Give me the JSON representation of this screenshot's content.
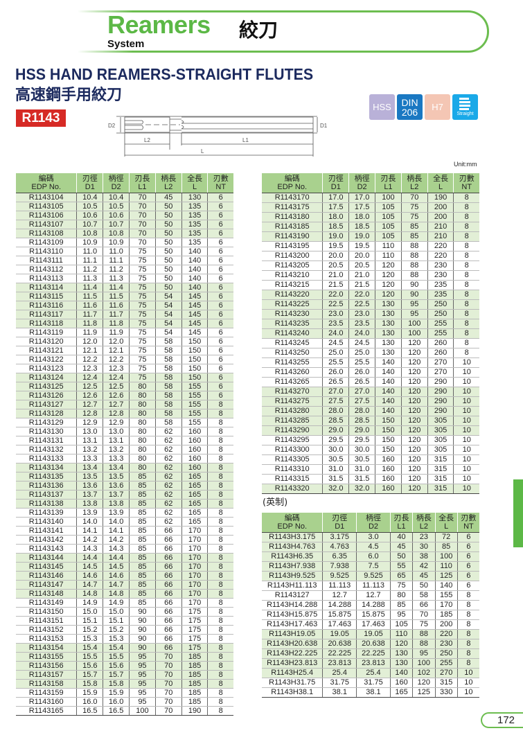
{
  "header": {
    "brand": "Reamers",
    "system": "System",
    "brand_cn": "絞刀"
  },
  "title": "HSS HAND REAMERS-STRAIGHT FLUTES",
  "title_cn": "高速鋼手用絞刀",
  "code": "R1143",
  "badges": [
    {
      "label": "HSS",
      "color": "#b9b1d8"
    },
    {
      "label": "DIN",
      "label2": "206",
      "color": "#1a78c2"
    },
    {
      "label": "H7",
      "color": "#f4c6b4"
    },
    {
      "label": "Straight",
      "color": "#1aa9e8"
    }
  ],
  "diagram": {
    "d2": "D2",
    "d1": "D1",
    "l2": "L2",
    "l1": "L1",
    "l": "L"
  },
  "unit": "Unit:mm",
  "columns": [
    [
      "編碼",
      "EDP No."
    ],
    [
      "刃徑",
      "D1"
    ],
    [
      "柄徑",
      "D2"
    ],
    [
      "刃長",
      "L1"
    ],
    [
      "柄長",
      "L2"
    ],
    [
      "全長",
      "L"
    ],
    [
      "刃數",
      "NT"
    ]
  ],
  "metric_left": [
    [
      "R1143104",
      "10.4",
      "10.4",
      "70",
      "45",
      "130",
      "6"
    ],
    [
      "R1143105",
      "10.5",
      "10.5",
      "70",
      "50",
      "135",
      "6"
    ],
    [
      "R1143106",
      "10.6",
      "10.6",
      "70",
      "50",
      "135",
      "6"
    ],
    [
      "R1143107",
      "10.7",
      "10.7",
      "70",
      "50",
      "135",
      "6"
    ],
    [
      "R1143108",
      "10.8",
      "10.8",
      "70",
      "50",
      "135",
      "6"
    ],
    [
      "R1143109",
      "10.9",
      "10.9",
      "70",
      "50",
      "135",
      "6"
    ],
    [
      "R1143110",
      "11.0",
      "11.0",
      "75",
      "50",
      "140",
      "6"
    ],
    [
      "R1143111",
      "11.1",
      "11.1",
      "75",
      "50",
      "140",
      "6"
    ],
    [
      "R1143112",
      "11.2",
      "11.2",
      "75",
      "50",
      "140",
      "6"
    ],
    [
      "R1143113",
      "11.3",
      "11.3",
      "75",
      "50",
      "140",
      "6"
    ],
    [
      "R1143114",
      "11.4",
      "11.4",
      "75",
      "50",
      "140",
      "6"
    ],
    [
      "R1143115",
      "11.5",
      "11.5",
      "75",
      "54",
      "145",
      "6"
    ],
    [
      "R1143116",
      "11.6",
      "11.6",
      "75",
      "54",
      "145",
      "6"
    ],
    [
      "R1143117",
      "11.7",
      "11.7",
      "75",
      "54",
      "145",
      "6"
    ],
    [
      "R1143118",
      "11.8",
      "11.8",
      "75",
      "54",
      "145",
      "6"
    ],
    [
      "R1143119",
      "11.9",
      "11.9",
      "75",
      "54",
      "145",
      "6"
    ],
    [
      "R1143120",
      "12.0",
      "12.0",
      "75",
      "58",
      "150",
      "6"
    ],
    [
      "R1143121",
      "12.1",
      "12.1",
      "75",
      "58",
      "150",
      "6"
    ],
    [
      "R1143122",
      "12.2",
      "12.2",
      "75",
      "58",
      "150",
      "6"
    ],
    [
      "R1143123",
      "12.3",
      "12.3",
      "75",
      "58",
      "150",
      "6"
    ],
    [
      "R1143124",
      "12.4",
      "12.4",
      "75",
      "58",
      "150",
      "6"
    ],
    [
      "R1143125",
      "12.5",
      "12.5",
      "80",
      "58",
      "155",
      "6"
    ],
    [
      "R1143126",
      "12.6",
      "12.6",
      "80",
      "58",
      "155",
      "6"
    ],
    [
      "R1143127",
      "12.7",
      "12.7",
      "80",
      "58",
      "155",
      "8"
    ],
    [
      "R1143128",
      "12.8",
      "12.8",
      "80",
      "58",
      "155",
      "8"
    ],
    [
      "R1143129",
      "12.9",
      "12.9",
      "80",
      "58",
      "155",
      "8"
    ],
    [
      "R1143130",
      "13.0",
      "13.0",
      "80",
      "62",
      "160",
      "8"
    ],
    [
      "R1143131",
      "13.1",
      "13.1",
      "80",
      "62",
      "160",
      "8"
    ],
    [
      "R1143132",
      "13.2",
      "13.2",
      "80",
      "62",
      "160",
      "8"
    ],
    [
      "R1143133",
      "13.3",
      "13.3",
      "80",
      "62",
      "160",
      "8"
    ],
    [
      "R1143134",
      "13.4",
      "13.4",
      "80",
      "62",
      "160",
      "8"
    ],
    [
      "R1143135",
      "13.5",
      "13.5",
      "85",
      "62",
      "165",
      "8"
    ],
    [
      "R1143136",
      "13.6",
      "13.6",
      "85",
      "62",
      "165",
      "8"
    ],
    [
      "R1143137",
      "13.7",
      "13.7",
      "85",
      "62",
      "165",
      "8"
    ],
    [
      "R1143138",
      "13.8",
      "13.8",
      "85",
      "62",
      "165",
      "8"
    ],
    [
      "R1143139",
      "13.9",
      "13.9",
      "85",
      "62",
      "165",
      "8"
    ],
    [
      "R1143140",
      "14.0",
      "14.0",
      "85",
      "62",
      "165",
      "8"
    ],
    [
      "R1143141",
      "14.1",
      "14.1",
      "85",
      "66",
      "170",
      "8"
    ],
    [
      "R1143142",
      "14.2",
      "14.2",
      "85",
      "66",
      "170",
      "8"
    ],
    [
      "R1143143",
      "14.3",
      "14.3",
      "85",
      "66",
      "170",
      "8"
    ],
    [
      "R1143144",
      "14.4",
      "14.4",
      "85",
      "66",
      "170",
      "8"
    ],
    [
      "R1143145",
      "14.5",
      "14.5",
      "85",
      "66",
      "170",
      "8"
    ],
    [
      "R1143146",
      "14.6",
      "14.6",
      "85",
      "66",
      "170",
      "8"
    ],
    [
      "R1143147",
      "14.7",
      "14.7",
      "85",
      "66",
      "170",
      "8"
    ],
    [
      "R1143148",
      "14.8",
      "14.8",
      "85",
      "66",
      "170",
      "8"
    ],
    [
      "R1143149",
      "14.9",
      "14.9",
      "85",
      "66",
      "170",
      "8"
    ],
    [
      "R1143150",
      "15.0",
      "15.0",
      "90",
      "66",
      "175",
      "8"
    ],
    [
      "R1143151",
      "15.1",
      "15.1",
      "90",
      "66",
      "175",
      "8"
    ],
    [
      "R1143152",
      "15.2",
      "15.2",
      "90",
      "66",
      "175",
      "8"
    ],
    [
      "R1143153",
      "15.3",
      "15.3",
      "90",
      "66",
      "175",
      "8"
    ],
    [
      "R1143154",
      "15.4",
      "15.4",
      "90",
      "66",
      "175",
      "8"
    ],
    [
      "R1143155",
      "15.5",
      "15.5",
      "95",
      "70",
      "185",
      "8"
    ],
    [
      "R1143156",
      "15.6",
      "15.6",
      "95",
      "70",
      "185",
      "8"
    ],
    [
      "R1143157",
      "15.7",
      "15.7",
      "95",
      "70",
      "185",
      "8"
    ],
    [
      "R1143158",
      "15.8",
      "15.8",
      "95",
      "70",
      "185",
      "8"
    ],
    [
      "R1143159",
      "15.9",
      "15.9",
      "95",
      "70",
      "185",
      "8"
    ],
    [
      "R1143160",
      "16.0",
      "16.0",
      "95",
      "70",
      "185",
      "8"
    ],
    [
      "R1143165",
      "16.5",
      "16.5",
      "100",
      "70",
      "190",
      "8"
    ]
  ],
  "metric_right": [
    [
      "R1143170",
      "17.0",
      "17.0",
      "100",
      "70",
      "190",
      "8"
    ],
    [
      "R1143175",
      "17.5",
      "17.5",
      "105",
      "75",
      "200",
      "8"
    ],
    [
      "R1143180",
      "18.0",
      "18.0",
      "105",
      "75",
      "200",
      "8"
    ],
    [
      "R1143185",
      "18.5",
      "18.5",
      "105",
      "85",
      "210",
      "8"
    ],
    [
      "R1143190",
      "19.0",
      "19.0",
      "105",
      "85",
      "210",
      "8"
    ],
    [
      "R1143195",
      "19.5",
      "19.5",
      "110",
      "88",
      "220",
      "8"
    ],
    [
      "R1143200",
      "20.0",
      "20.0",
      "110",
      "88",
      "220",
      "8"
    ],
    [
      "R1143205",
      "20.5",
      "20.5",
      "120",
      "88",
      "230",
      "8"
    ],
    [
      "R1143210",
      "21.0",
      "21.0",
      "120",
      "88",
      "230",
      "8"
    ],
    [
      "R1143215",
      "21.5",
      "21.5",
      "120",
      "90",
      "235",
      "8"
    ],
    [
      "R1143220",
      "22.0",
      "22.0",
      "120",
      "90",
      "235",
      "8"
    ],
    [
      "R1143225",
      "22.5",
      "22.5",
      "130",
      "95",
      "250",
      "8"
    ],
    [
      "R1143230",
      "23.0",
      "23.0",
      "130",
      "95",
      "250",
      "8"
    ],
    [
      "R1143235",
      "23.5",
      "23.5",
      "130",
      "100",
      "255",
      "8"
    ],
    [
      "R1143240",
      "24.0",
      "24.0",
      "130",
      "100",
      "255",
      "8"
    ],
    [
      "R1143245",
      "24.5",
      "24.5",
      "130",
      "120",
      "260",
      "8"
    ],
    [
      "R1143250",
      "25.0",
      "25.0",
      "130",
      "120",
      "260",
      "8"
    ],
    [
      "R1143255",
      "25.5",
      "25.5",
      "140",
      "120",
      "270",
      "10"
    ],
    [
      "R1143260",
      "26.0",
      "26.0",
      "140",
      "120",
      "270",
      "10"
    ],
    [
      "R1143265",
      "26.5",
      "26.5",
      "140",
      "120",
      "290",
      "10"
    ],
    [
      "R1143270",
      "27.0",
      "27.0",
      "140",
      "120",
      "290",
      "10"
    ],
    [
      "R1143275",
      "27.5",
      "27.5",
      "140",
      "120",
      "290",
      "10"
    ],
    [
      "R1143280",
      "28.0",
      "28.0",
      "140",
      "120",
      "290",
      "10"
    ],
    [
      "R1143285",
      "28.5",
      "28.5",
      "150",
      "120",
      "305",
      "10"
    ],
    [
      "R1143290",
      "29.0",
      "29.0",
      "150",
      "120",
      "305",
      "10"
    ],
    [
      "R1143295",
      "29.5",
      "29.5",
      "150",
      "120",
      "305",
      "10"
    ],
    [
      "R1143300",
      "30.0",
      "30.0",
      "150",
      "120",
      "305",
      "10"
    ],
    [
      "R1143305",
      "30.5",
      "30.5",
      "160",
      "120",
      "315",
      "10"
    ],
    [
      "R1143310",
      "31.0",
      "31.0",
      "160",
      "120",
      "315",
      "10"
    ],
    [
      "R1143315",
      "31.5",
      "31.5",
      "160",
      "120",
      "315",
      "10"
    ],
    [
      "R1143320",
      "32.0",
      "32.0",
      "160",
      "120",
      "315",
      "10"
    ]
  ],
  "imperial_label": "(英制)",
  "imperial": [
    [
      "R1143H3.175",
      "3.175",
      "3.0",
      "40",
      "23",
      "72",
      "6"
    ],
    [
      "R1143H4.763",
      "4.763",
      "4.5",
      "45",
      "30",
      "85",
      "6"
    ],
    [
      "R1143H6.35",
      "6.35",
      "6.0",
      "50",
      "38",
      "100",
      "6"
    ],
    [
      "R1143H7.938",
      "7.938",
      "7.5",
      "55",
      "42",
      "110",
      "6"
    ],
    [
      "R1143H9.525",
      "9.525",
      "9.525",
      "65",
      "45",
      "125",
      "6"
    ],
    [
      "R1143H11.113",
      "11.113",
      "11.113",
      "75",
      "50",
      "140",
      "6"
    ],
    [
      "R1143127",
      "12.7",
      "12.7",
      "80",
      "58",
      "155",
      "8"
    ],
    [
      "R1143H14.288",
      "14.288",
      "14.288",
      "85",
      "66",
      "170",
      "8"
    ],
    [
      "R1143H15.875",
      "15.875",
      "15.875",
      "95",
      "70",
      "185",
      "8"
    ],
    [
      "R1143H17.463",
      "17.463",
      "17.463",
      "105",
      "75",
      "200",
      "8"
    ],
    [
      "R1143H19.05",
      "19.05",
      "19.05",
      "110",
      "88",
      "220",
      "8"
    ],
    [
      "R1143H20.638",
      "20.638",
      "20.638",
      "120",
      "88",
      "230",
      "8"
    ],
    [
      "R1143H22.225",
      "22.225",
      "22.225",
      "130",
      "95",
      "250",
      "8"
    ],
    [
      "R1143H23.813",
      "23.813",
      "23.813",
      "130",
      "100",
      "255",
      "8"
    ],
    [
      "R1143H25.4",
      "25.4",
      "25.4",
      "140",
      "102",
      "270",
      "10"
    ],
    [
      "R1143H31.75",
      "31.75",
      "31.75",
      "160",
      "120",
      "315",
      "10"
    ],
    [
      "R1143H38.1",
      "38.1",
      "38.1",
      "165",
      "125",
      "330",
      "10"
    ]
  ],
  "page_number": "172",
  "colors": {
    "brand_green": "#5cb846",
    "row_shade": "#e2efd6",
    "header_shade": "#a9d18e",
    "title_navy": "#1c2a5e",
    "code_red": "#d62a25"
  }
}
